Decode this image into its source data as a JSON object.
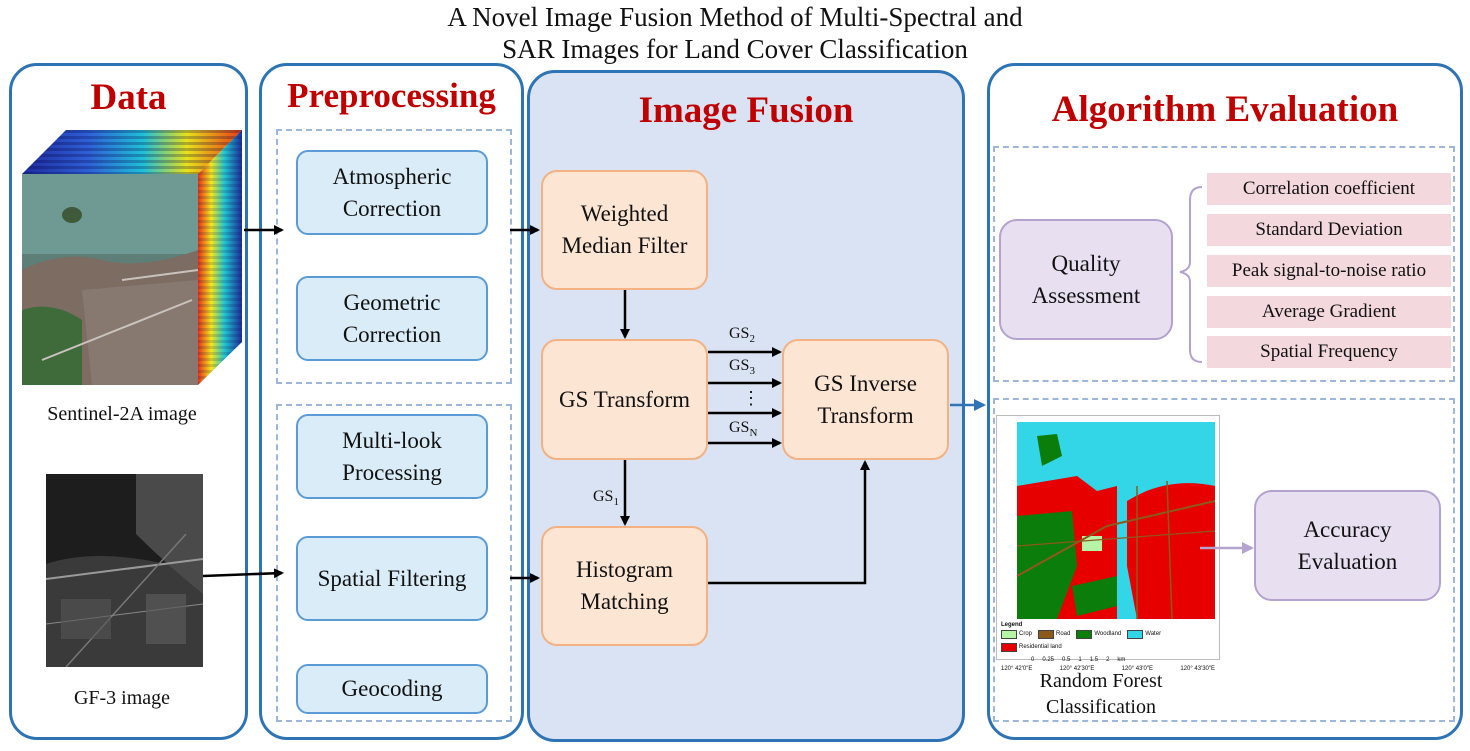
{
  "title": {
    "line1": "A Novel Image Fusion Method of Multi-Spectral and",
    "line2": "SAR Images for Land Cover Classification"
  },
  "panels": {
    "data": {
      "heading": "Data",
      "sentinel_caption": "Sentinel-2A image",
      "gf3_caption": "GF-3 image"
    },
    "preprocessing": {
      "heading": "Preprocessing",
      "optical_steps": [
        "Atmospheric Correction",
        "Geometric Correction"
      ],
      "sar_steps": [
        "Multi-look Processing",
        "Spatial Filtering",
        "Geocoding"
      ]
    },
    "fusion": {
      "heading": "Image Fusion",
      "weighted_median": "Weighted Median Filter",
      "gs_transform": "GS Transform",
      "histogram_matching": "Histogram Matching",
      "gs_inverse": "GS Inverse Transform",
      "labels": {
        "gs": "GS",
        "sub2": "2",
        "sub3": "3",
        "subN": "N",
        "sub1": "1",
        "dots": "⋮"
      }
    },
    "evaluation": {
      "heading": "Algorithm Evaluation",
      "quality": "Quality Assessment",
      "metrics": [
        "Correlation coefficient",
        "Standard Deviation",
        "Peak signal-to-noise ratio",
        "Average Gradient",
        "Spatial Frequency"
      ],
      "accuracy": "Accuracy Evaluation",
      "classification_caption": "Random Forest Classification",
      "map": {
        "legend_title": "Legend",
        "legend": [
          "Crop",
          "Road",
          "Woodland",
          "Water",
          "Residential land"
        ],
        "legend_colors": [
          "#b7f5a6",
          "#8b5a1b",
          "#0a7d0a",
          "#33d6e6",
          "#e60000"
        ],
        "scale_values": [
          "0",
          "0.25",
          "0.5",
          "1",
          "1.5",
          "2"
        ],
        "scale_unit": "km",
        "lon_labels": [
          "120° 42′0″E",
          "120° 42′30″E",
          "120° 43′0″E",
          "120° 43′30″E"
        ]
      }
    }
  },
  "colors": {
    "panel_border": "#2e74b5",
    "heading_red": "#c00000",
    "fusion_bg": "#dae3f3",
    "blue_box": "#d9ecf7",
    "orange_box": "#fde5d4",
    "purple_box": "#e8e0f1",
    "metric_bg": "#f3d9dd"
  }
}
